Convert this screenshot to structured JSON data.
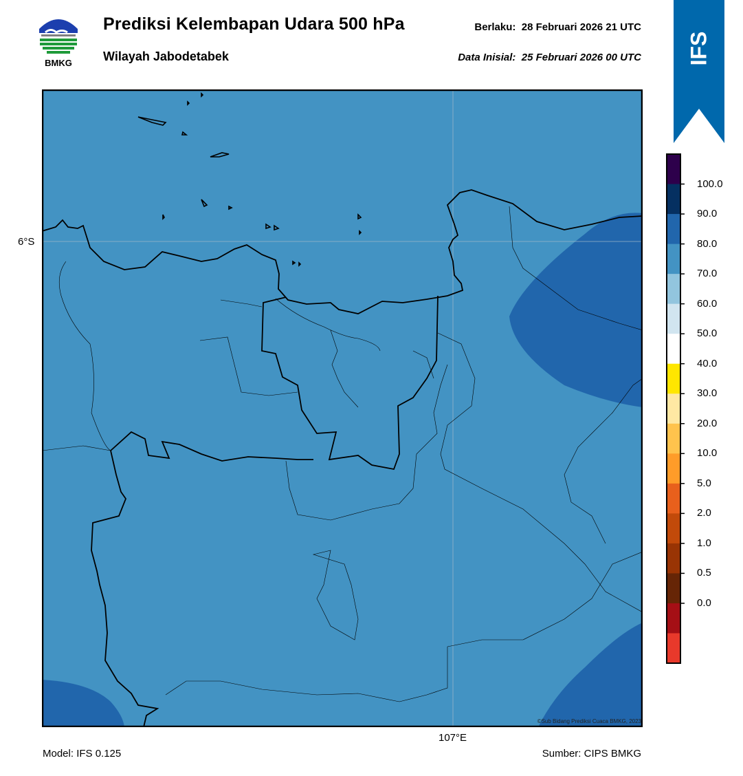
{
  "header": {
    "logo_text": "BMKG",
    "title": "Prediksi Kelembapan Udara 500 hPa",
    "subtitle": "Wilayah Jabodetabek",
    "valid_label": "Berlaku:",
    "valid_time": "28 Februari 2026 21 UTC",
    "initial_label": "Data Inisial:",
    "initial_time": "25 Februari 2026 00 UTC"
  },
  "banner": {
    "text": "IFS",
    "color": "#0068ac"
  },
  "map": {
    "lat_label": "6°S",
    "lon_label": "107°E",
    "copyright": "©Sub Bidang Prediksi Cuaca BMKG, 2023",
    "fill_color_70_80": "#4393c3",
    "fill_color_80_90": "#2166ac"
  },
  "colorbar": {
    "labels": [
      "100.0",
      "90.0",
      "80.0",
      "70.0",
      "60.0",
      "50.0",
      "40.0",
      "30.0",
      "20.0",
      "10.0",
      "5.0",
      "2.0",
      "1.0",
      "0.5",
      "0.0"
    ],
    "colors_top_to_bottom": [
      "#2d004b",
      "#053061",
      "#2166ac",
      "#4393c3",
      "#92c5de",
      "#d1e5f0",
      "#ffffff",
      "#ffe600",
      "#ffe8a3",
      "#ffc34d",
      "#ff9c29",
      "#e8601c",
      "#c24a0a",
      "#993404",
      "#662506",
      "#a50f15",
      "#e8392b"
    ]
  },
  "footer": {
    "model": "Model: IFS 0.125",
    "source": "Sumber: CIPS BMKG"
  }
}
